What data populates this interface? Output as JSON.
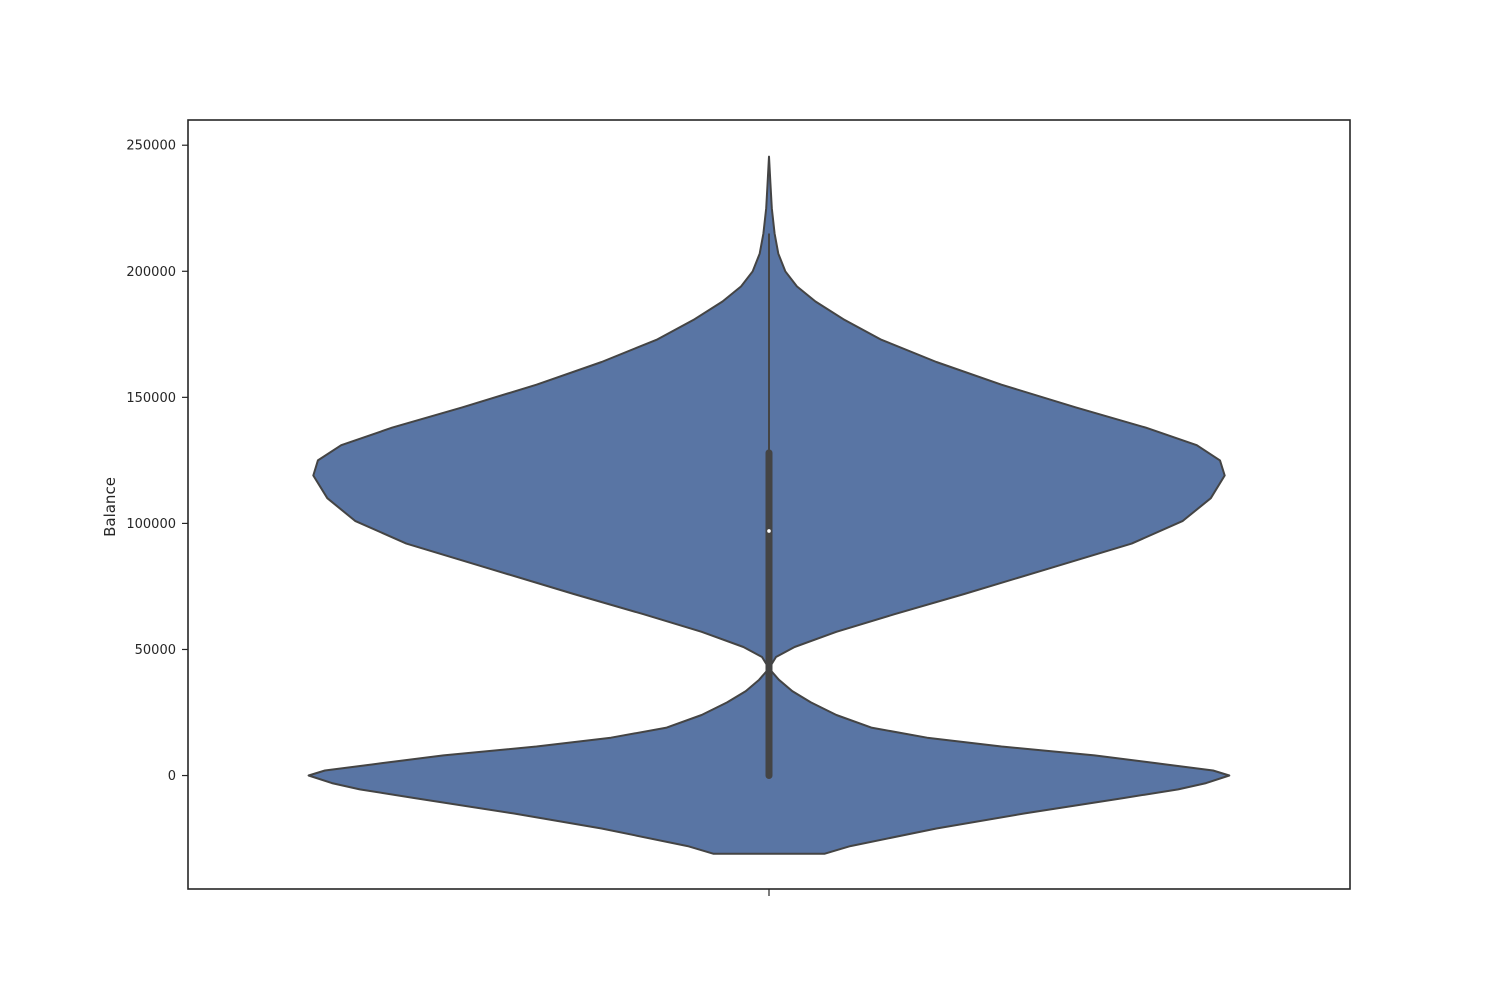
{
  "chart_data": {
    "type": "violin",
    "title": "",
    "xlabel": "",
    "ylabel": "Balance",
    "ylim": [
      -45000,
      260000
    ],
    "yticks": [
      {
        "value": 0,
        "label": "0"
      },
      {
        "value": 50000,
        "label": "50000"
      },
      {
        "value": 100000,
        "label": "100000"
      },
      {
        "value": 150000,
        "label": "150000"
      },
      {
        "value": 200000,
        "label": "200000"
      },
      {
        "value": 250000,
        "label": "250000"
      }
    ],
    "grid": false,
    "legend": "none",
    "colors": {
      "fill": "#5975a4",
      "edge": "#444444",
      "box": "#444444",
      "median": "#ffffff"
    },
    "density_profile": [
      {
        "y": -31000,
        "width": 0.12
      },
      {
        "y": -28000,
        "width": 0.175
      },
      {
        "y": -21000,
        "width": 0.36
      },
      {
        "y": -15000,
        "width": 0.55
      },
      {
        "y": -9000,
        "width": 0.76
      },
      {
        "y": -5500,
        "width": 0.88
      },
      {
        "y": -3000,
        "width": 0.94
      },
      {
        "y": 0,
        "width": 0.99
      },
      {
        "y": 2000,
        "width": 0.955
      },
      {
        "y": 4500,
        "width": 0.85
      },
      {
        "y": 8000,
        "width": 0.7
      },
      {
        "y": 11500,
        "width": 0.5
      },
      {
        "y": 15000,
        "width": 0.34
      },
      {
        "y": 19000,
        "width": 0.22
      },
      {
        "y": 24000,
        "width": 0.145
      },
      {
        "y": 29000,
        "width": 0.09
      },
      {
        "y": 33500,
        "width": 0.05
      },
      {
        "y": 38000,
        "width": 0.021
      },
      {
        "y": 42500,
        "width": 0.0
      },
      {
        "y": 47000,
        "width": 0.015
      },
      {
        "y": 51000,
        "width": 0.055
      },
      {
        "y": 57000,
        "width": 0.145
      },
      {
        "y": 64000,
        "width": 0.27
      },
      {
        "y": 72000,
        "width": 0.42
      },
      {
        "y": 82000,
        "width": 0.6
      },
      {
        "y": 92000,
        "width": 0.78
      },
      {
        "y": 101000,
        "width": 0.89
      },
      {
        "y": 110000,
        "width": 0.95
      },
      {
        "y": 119000,
        "width": 0.98
      },
      {
        "y": 125000,
        "width": 0.97
      },
      {
        "y": 131000,
        "width": 0.92
      },
      {
        "y": 138000,
        "width": 0.81
      },
      {
        "y": 146000,
        "width": 0.66
      },
      {
        "y": 155000,
        "width": 0.5
      },
      {
        "y": 164000,
        "width": 0.36
      },
      {
        "y": 173000,
        "width": 0.24
      },
      {
        "y": 181000,
        "width": 0.16
      },
      {
        "y": 188000,
        "width": 0.1
      },
      {
        "y": 194000,
        "width": 0.06
      },
      {
        "y": 200000,
        "width": 0.035
      },
      {
        "y": 207000,
        "width": 0.02
      },
      {
        "y": 215000,
        "width": 0.012
      },
      {
        "y": 225000,
        "width": 0.006
      },
      {
        "y": 235000,
        "width": 0.003
      },
      {
        "y": 245500,
        "width": 0.0
      }
    ],
    "box": {
      "whisker_low": 0,
      "q1": 0,
      "median": 97000,
      "q3": 128000,
      "whisker_high": 215000
    }
  }
}
